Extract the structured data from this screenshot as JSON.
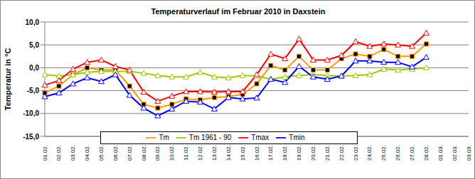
{
  "chart_data": {
    "type": "line",
    "title": "Temperaturverlauf im Februar 2010 in Daxstein",
    "y_label": "Temperatur in °C",
    "categories": [
      "01.02.",
      "02.02.",
      "03.02.",
      "04.02.",
      "05.02.",
      "06.02.",
      "07.02.",
      "08.02.",
      "09.02.",
      "10.02.",
      "11.02.",
      "12.02.",
      "13.02.",
      "14.02.",
      "15.02.",
      "16.02.",
      "17.02.",
      "18.02.",
      "19.02.",
      "20.02.",
      "21.02.",
      "22.02.",
      "23.02.",
      "24.02.",
      "25.02.",
      "26.02.",
      "27.02.",
      "28.02.",
      "01.03.",
      "02.03.",
      "03.03."
    ],
    "series": [
      {
        "name": "Tm",
        "color": "#ff9900",
        "marker": "square",
        "values": [
          -5.5,
          -4,
          -1.5,
          0,
          -0.5,
          -0.5,
          -4,
          -8,
          -8.8,
          -8,
          -6.8,
          -7,
          -6.5,
          -6.3,
          -5.8,
          -3.5,
          0.5,
          -0.5,
          2.5,
          -0.5,
          -0.5,
          2,
          3,
          2.5,
          4,
          2.5,
          2.5,
          5.2,
          null,
          null,
          null
        ]
      },
      {
        "name": "Tm 1961 - 90",
        "color": "#99cc00",
        "marker": "triangle",
        "values": [
          -1.5,
          -1.8,
          -1.5,
          -1,
          -0.8,
          -0.8,
          -0.8,
          -1.2,
          -1.7,
          -2,
          -2,
          -1,
          -2,
          -2.2,
          -1.7,
          -1.8,
          -2.5,
          -2,
          -1.7,
          -1.5,
          -1.7,
          -1.8,
          -1.7,
          -1.5,
          -0.3,
          -0.5,
          -0.3,
          0,
          null,
          null,
          null
        ]
      },
      {
        "name": "Tmax",
        "color": "#ff0000",
        "marker": "triangle",
        "values": [
          -3.8,
          -2.8,
          -0.3,
          1.2,
          1.7,
          0.3,
          -0.5,
          -5.3,
          -7.3,
          -6.2,
          -5.2,
          -5.2,
          -5.3,
          -5.2,
          -5.2,
          -1.5,
          3,
          2,
          6.3,
          1.7,
          1.7,
          2.7,
          5.7,
          4.7,
          5.2,
          5,
          4.7,
          7.6,
          null,
          null,
          null
        ]
      },
      {
        "name": "Tmin",
        "color": "#0000ff",
        "marker": "triangle",
        "values": [
          -6.3,
          -5.5,
          -3.5,
          -2.2,
          -3,
          -1.5,
          -6,
          -8.8,
          -10.5,
          -9,
          -7.3,
          -7.5,
          -9,
          -6.5,
          -6.8,
          -6.6,
          -2.5,
          -3.2,
          0.3,
          -2,
          -2.5,
          -1.8,
          1.5,
          1.5,
          1.2,
          1.2,
          0.2,
          2.3,
          null,
          null,
          null
        ]
      }
    ],
    "ylim": [
      -15,
      10
    ],
    "yticks": [
      {
        "value": -15,
        "label": "-15,0"
      },
      {
        "value": -10,
        "label": "-10,0"
      },
      {
        "value": -5,
        "label": "-5,0"
      },
      {
        "value": 0,
        "label": "0,0"
      },
      {
        "value": 5,
        "label": "5,0"
      },
      {
        "value": 10,
        "label": "10,0"
      }
    ],
    "grid": true,
    "legend": "bottom"
  }
}
